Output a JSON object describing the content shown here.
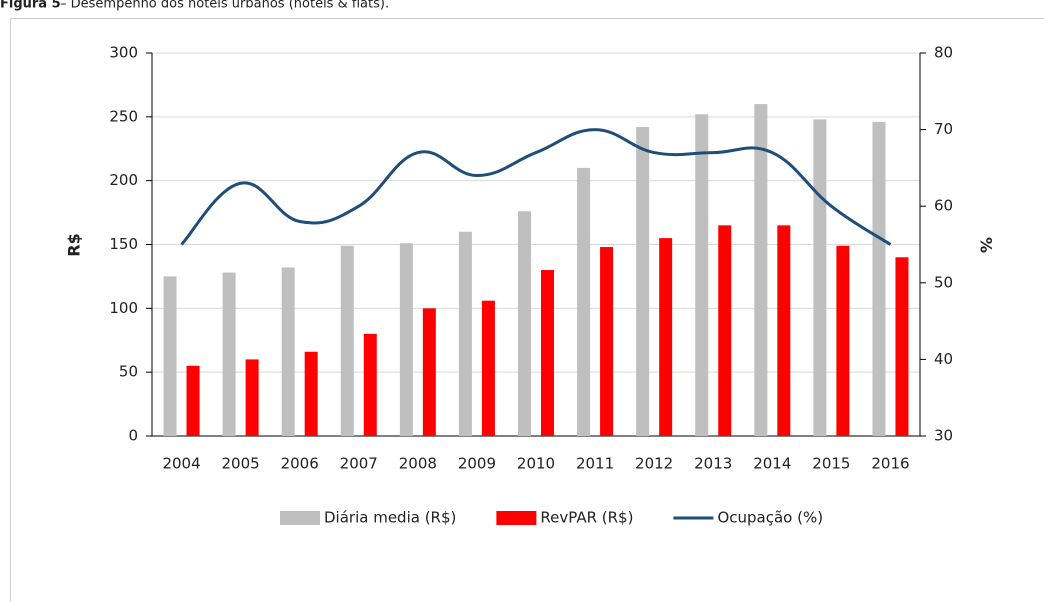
{
  "chart_data": {
    "type": "bar-line",
    "title": "Figura 5",
    "subtitle": "– Desempenho dos hotéis urbanos (hotéis & flats).",
    "categories": [
      "2004",
      "2005",
      "2006",
      "2007",
      "2008",
      "2009",
      "2010",
      "2011",
      "2012",
      "2013",
      "2014",
      "2015",
      "2016"
    ],
    "series": [
      {
        "name": "Diária media (R$)",
        "type": "bar",
        "color": "#bfbfbf",
        "values": [
          125,
          128,
          132,
          149,
          151,
          160,
          176,
          210,
          242,
          252,
          260,
          248,
          246
        ]
      },
      {
        "name": "RevPAR (R$)",
        "type": "bar",
        "color": "#ff0000",
        "values": [
          55,
          60,
          66,
          80,
          100,
          106,
          130,
          148,
          155,
          165,
          165,
          149,
          140
        ]
      },
      {
        "name": "Ocupação (%)",
        "type": "line",
        "axis": "y2",
        "color": "#1f4e79",
        "values": [
          55,
          63,
          58,
          60,
          67,
          64,
          67,
          70,
          67,
          67,
          67,
          60,
          55
        ]
      }
    ],
    "ylabel": "R$",
    "y2label": "%",
    "ylim": [
      0,
      300
    ],
    "yticks": [
      0,
      50,
      100,
      150,
      200,
      250,
      300
    ],
    "y2lim": [
      30,
      80
    ],
    "y2ticks": [
      30,
      40,
      50,
      60,
      70,
      80
    ],
    "grid": true,
    "legend": "bottom"
  }
}
